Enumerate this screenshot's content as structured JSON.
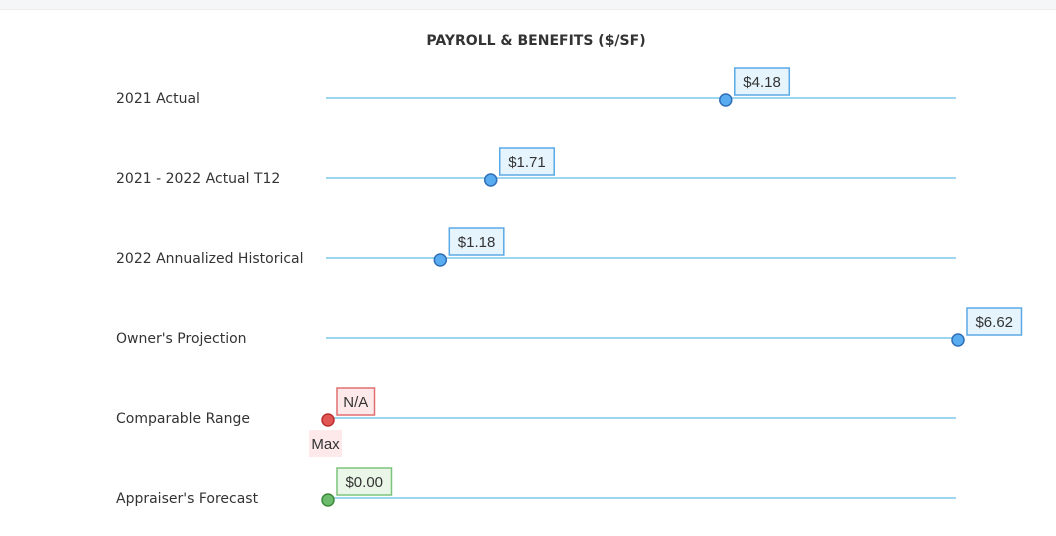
{
  "chart_data": {
    "type": "dot",
    "title": "PAYROLL & BENEFITS ($/SF)",
    "xlim": [
      0,
      6.62
    ],
    "grid": false,
    "rows": [
      {
        "label": "2021 Actual",
        "value": 4.18,
        "value_label": "$4.18",
        "status": "normal"
      },
      {
        "label": "2021 - 2022 Actual T12",
        "value": 1.71,
        "value_label": "$1.71",
        "status": "normal"
      },
      {
        "label": "2022 Annualized Historical",
        "value": 1.18,
        "value_label": "$1.18",
        "status": "normal"
      },
      {
        "label": "Owner's Projection",
        "value": 6.62,
        "value_label": "$6.62",
        "status": "normal"
      },
      {
        "label": "Comparable Range",
        "value": 0,
        "value_label": "N/A",
        "secondary_label": "Max",
        "status": "na"
      },
      {
        "label": "Appraiser's Forecast",
        "value": 0.0,
        "value_label": "$0.00",
        "status": "forecast"
      }
    ],
    "colors": {
      "line": "#7ec8ec",
      "normal_marker": "#5aacf0",
      "normal_marker_stroke": "#2f6fb8",
      "normal_box_fill": "#e6f4fd",
      "normal_box_stroke": "#5aa9e6",
      "na_marker": "#e25555",
      "na_marker_stroke": "#b83030",
      "na_box_fill": "#fde9ea",
      "na_box_stroke": "#e07070",
      "forecast_marker": "#6dbb6d",
      "forecast_marker_stroke": "#3d8a3d",
      "forecast_box_fill": "#eaf6e8",
      "forecast_box_stroke": "#7cc47c"
    }
  }
}
